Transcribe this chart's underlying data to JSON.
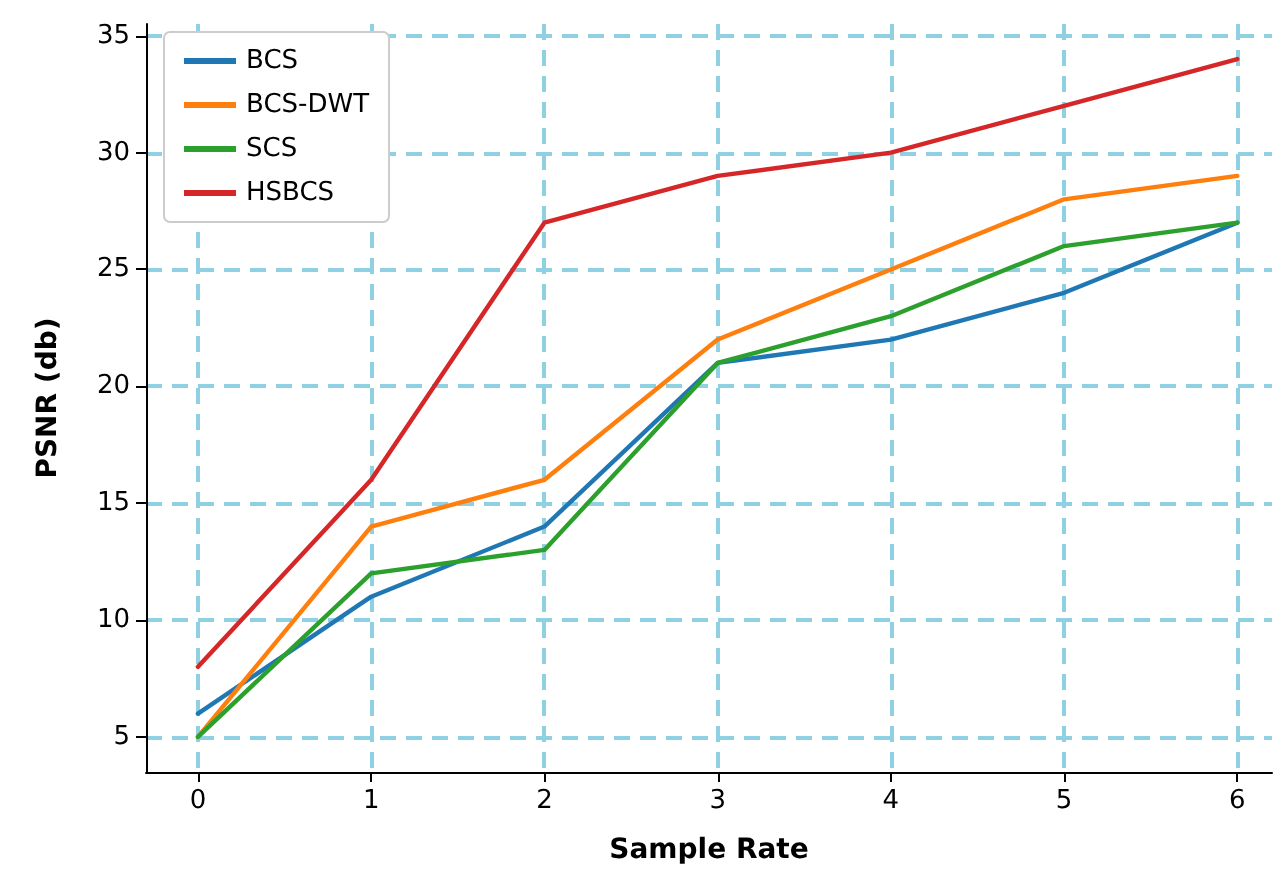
{
  "chart_data": {
    "type": "line",
    "xlabel": "Sample Rate",
    "ylabel": "PSNR (db)",
    "x": [
      0,
      1,
      2,
      3,
      4,
      5,
      6
    ],
    "series": [
      {
        "name": "BCS",
        "color": "#1f77b4",
        "values": [
          6,
          11,
          14,
          21,
          22,
          24,
          27
        ]
      },
      {
        "name": "BCS-DWT",
        "color": "#ff7f0e",
        "values": [
          5,
          14,
          16,
          22,
          25,
          28,
          29
        ]
      },
      {
        "name": "SCS",
        "color": "#2ca02c",
        "values": [
          5,
          12,
          13,
          21,
          23,
          26,
          27
        ]
      },
      {
        "name": "HSBCS",
        "color": "#d62728",
        "values": [
          8,
          16,
          27,
          29,
          30,
          32,
          34
        ]
      }
    ],
    "xlim": [
      -0.3,
      6.2
    ],
    "ylim": [
      3.5,
      35.5
    ],
    "xticks": [
      0,
      1,
      2,
      3,
      4,
      5,
      6
    ],
    "yticks": [
      5,
      10,
      15,
      20,
      25,
      30,
      35
    ],
    "grid": true,
    "legend": "top left",
    "marker": "none",
    "line_style": "solid"
  }
}
